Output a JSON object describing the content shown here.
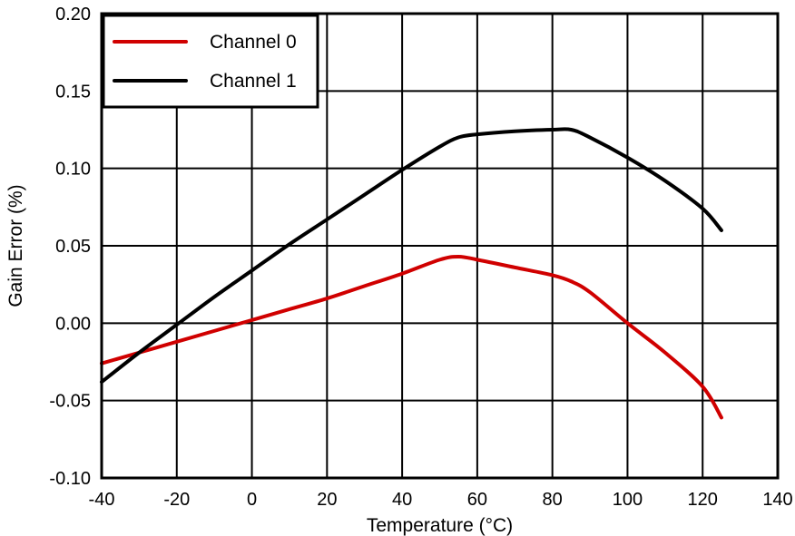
{
  "chart_data": {
    "type": "line",
    "title": "",
    "xlabel": "Temperature (°C)",
    "ylabel": "Gain Error (%)",
    "xlim": [
      -40,
      140
    ],
    "ylim": [
      -0.1,
      0.2
    ],
    "xticks": [
      -40,
      -20,
      0,
      20,
      40,
      60,
      80,
      100,
      120,
      140
    ],
    "yticks": [
      -0.1,
      -0.05,
      0.0,
      0.05,
      0.1,
      0.15,
      0.2
    ],
    "xtick_labels": [
      "-40",
      "-20",
      "0",
      "20",
      "40",
      "60",
      "80",
      "100",
      "120",
      "140"
    ],
    "ytick_labels": [
      "-0.10",
      "-0.05",
      "0.00",
      "0.05",
      "0.10",
      "0.15",
      "0.20"
    ],
    "grid": true,
    "legend_position": "top-left",
    "series": [
      {
        "name": "Channel 0",
        "color": "#d00000",
        "x": [
          -40,
          -30,
          -20,
          -10,
          0,
          10,
          20,
          30,
          40,
          50,
          55,
          60,
          70,
          80,
          85,
          90,
          100,
          110,
          120,
          125
        ],
        "y": [
          -0.026,
          -0.019,
          -0.012,
          -0.005,
          0.002,
          0.009,
          0.016,
          0.024,
          0.032,
          0.041,
          0.043,
          0.041,
          0.036,
          0.031,
          0.027,
          0.02,
          0.0,
          -0.019,
          -0.041,
          -0.061
        ]
      },
      {
        "name": "Channel 1",
        "color": "#000000",
        "x": [
          -40,
          -30,
          -20,
          -10,
          0,
          10,
          20,
          30,
          40,
          50,
          55,
          60,
          70,
          80,
          85,
          90,
          100,
          110,
          120,
          125
        ],
        "y": [
          -0.038,
          -0.019,
          -0.001,
          0.017,
          0.034,
          0.051,
          0.067,
          0.083,
          0.099,
          0.114,
          0.12,
          0.122,
          0.124,
          0.125,
          0.125,
          0.12,
          0.107,
          0.092,
          0.074,
          0.06
        ]
      }
    ]
  }
}
